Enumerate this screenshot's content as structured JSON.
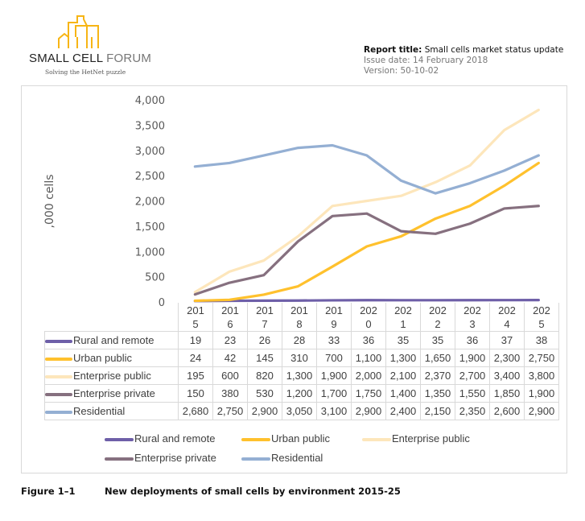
{
  "header": {
    "logo": {
      "name": "SMALL CELL",
      "name2": "FORUM",
      "tagline": "Solving the HetNet puzzle"
    },
    "report_title_label": "Report title:",
    "report_title": "Small cells market status update",
    "issue_date": "Issue date: 14 February 2018",
    "version": "Version: 50-10-02"
  },
  "chart_data": {
    "type": "line",
    "title": "",
    "xlabel": "",
    "ylabel": ",000 cells",
    "ylim": [
      0,
      4000
    ],
    "yticks": [
      "0",
      "500",
      "1,000",
      "1,500",
      "2,000",
      "2,500",
      "3,000",
      "3,500",
      "4,000"
    ],
    "yticks_values": [
      0,
      500,
      1000,
      1500,
      2000,
      2500,
      3000,
      3500,
      4000
    ],
    "categories": [
      "2015",
      "2016",
      "2017",
      "2018",
      "2019",
      "2020",
      "2021",
      "2022",
      "2023",
      "2024",
      "2025"
    ],
    "category_labels": [
      [
        "201",
        "5"
      ],
      [
        "201",
        "6"
      ],
      [
        "201",
        "7"
      ],
      [
        "201",
        "8"
      ],
      [
        "201",
        "9"
      ],
      [
        "202",
        "0"
      ],
      [
        "202",
        "1"
      ],
      [
        "202",
        "2"
      ],
      [
        "202",
        "3"
      ],
      [
        "202",
        "4"
      ],
      [
        "202",
        "5"
      ]
    ],
    "grid": false,
    "legend": "bottom",
    "series": [
      {
        "name": "Rural and remote",
        "color": "#6E5FA8",
        "values": [
          19,
          23,
          26,
          28,
          33,
          36,
          35,
          35,
          36,
          37,
          38
        ],
        "labels": [
          "19",
          "23",
          "26",
          "28",
          "33",
          "36",
          "35",
          "35",
          "36",
          "37",
          "38"
        ]
      },
      {
        "name": "Urban public",
        "color": "#FFC12D",
        "values": [
          24,
          42,
          145,
          310,
          700,
          1100,
          1300,
          1650,
          1900,
          2300,
          2750
        ],
        "labels": [
          "24",
          "42",
          "145",
          "310",
          "700",
          "1,100",
          "1,300",
          "1,650",
          "1,900",
          "2,300",
          "2,750"
        ]
      },
      {
        "name": "Enterprise public",
        "color": "#FDE6BB",
        "values": [
          195,
          600,
          820,
          1300,
          1900,
          2000,
          2100,
          2370,
          2700,
          3400,
          3800
        ],
        "labels": [
          "195",
          "600",
          "820",
          "1,300",
          "1,900",
          "2,000",
          "2,100",
          "2,370",
          "2,700",
          "3,400",
          "3,800"
        ]
      },
      {
        "name": "Enterprise private",
        "color": "#86707F",
        "values": [
          150,
          380,
          530,
          1200,
          1700,
          1750,
          1400,
          1350,
          1550,
          1850,
          1900
        ],
        "labels": [
          "150",
          "380",
          "530",
          "1,200",
          "1,700",
          "1,750",
          "1,400",
          "1,350",
          "1,550",
          "1,850",
          "1,900"
        ]
      },
      {
        "name": "Residential",
        "color": "#94AFD3",
        "values": [
          2680,
          2750,
          2900,
          3050,
          3100,
          2900,
          2400,
          2150,
          2350,
          2600,
          2900
        ],
        "labels": [
          "2,680",
          "2,750",
          "2,900",
          "3,050",
          "3,100",
          "2,900",
          "2,400",
          "2,150",
          "2,350",
          "2,600",
          "2,900"
        ]
      }
    ]
  },
  "caption": {
    "number": "Figure 1–1",
    "text": "New deployments of small cells by environment 2015-25"
  }
}
